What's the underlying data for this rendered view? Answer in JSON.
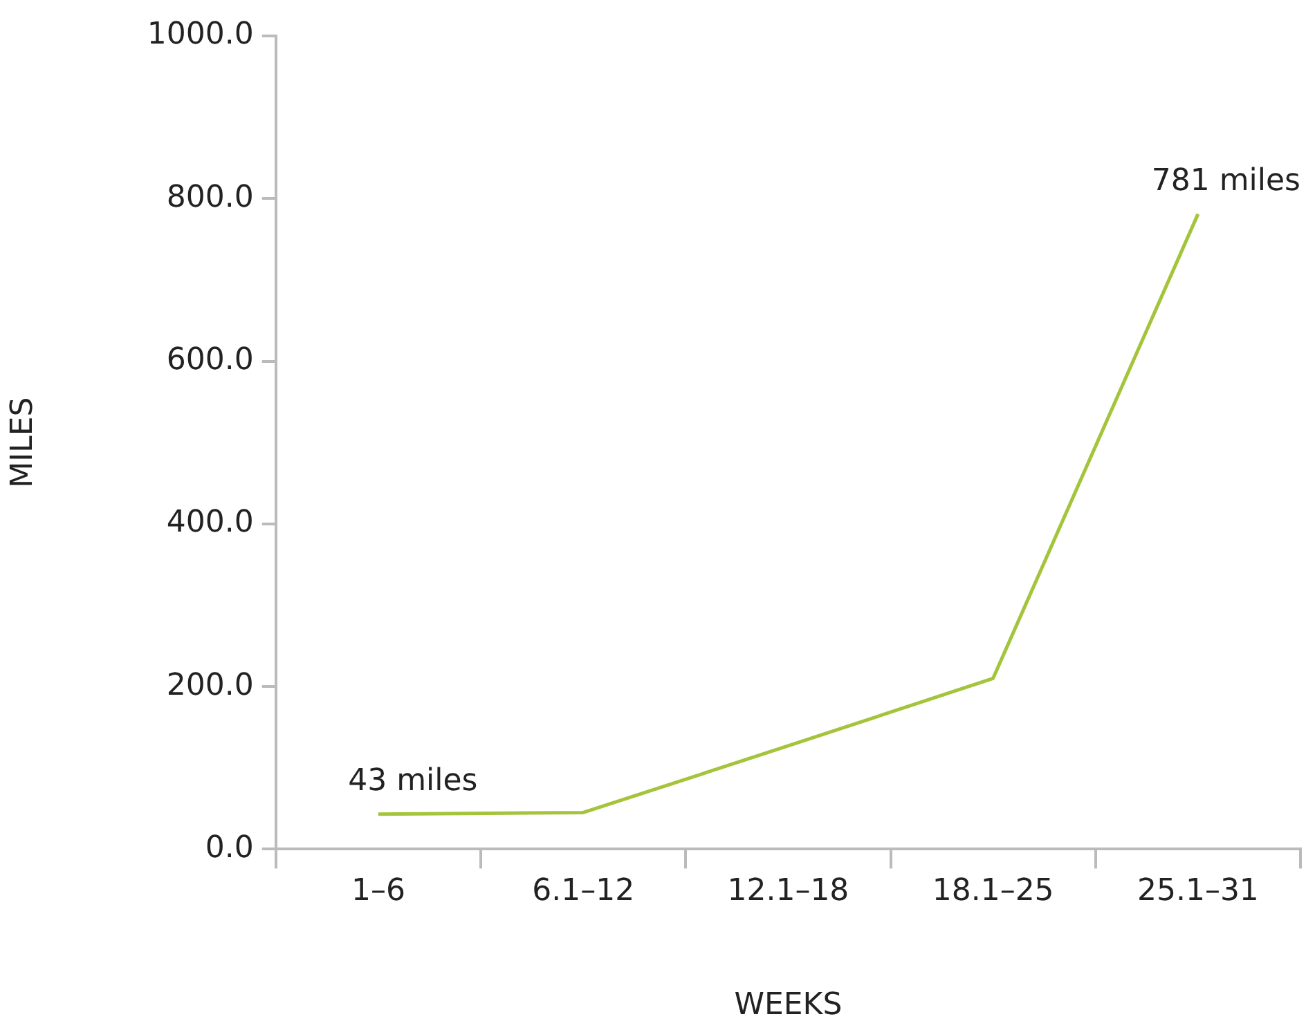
{
  "chart_data": {
    "type": "line",
    "xlabel": "WEEKS",
    "ylabel": "MILES",
    "categories": [
      "1–6",
      "6.1–12",
      "12.1–18",
      "18.1–25",
      "25.1–31"
    ],
    "series": [
      {
        "color": "#a4c43c",
        "values": [
          43,
          45,
          127,
          210,
          781
        ]
      }
    ],
    "ylim": [
      0,
      1000
    ],
    "yticks": [
      {
        "value": 0,
        "label": "0.0"
      },
      {
        "value": 200,
        "label": "200.0"
      },
      {
        "value": 400,
        "label": "400.0"
      },
      {
        "value": 600,
        "label": "600.0"
      },
      {
        "value": 800,
        "label": "800.0"
      },
      {
        "value": 1000,
        "label": "1000.0"
      }
    ],
    "grid": false,
    "legend": false,
    "marker": "none",
    "line_style": "solid",
    "annotations": [
      {
        "text": "43 miles",
        "x": "1–6",
        "y": 43
      },
      {
        "text": "781 miles",
        "x": "25.1–31",
        "y": 781
      }
    ]
  }
}
